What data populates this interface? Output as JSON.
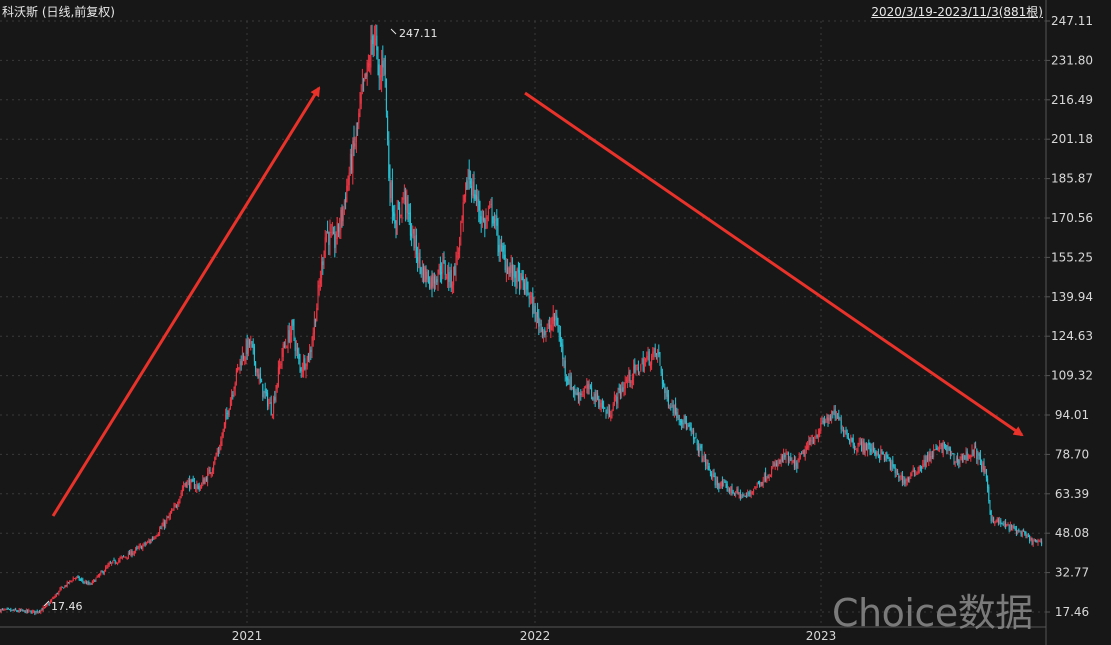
{
  "header": {
    "title": "科沃斯 (日线,前复权)",
    "range": "2020/3/19-2023/11/3(881根)"
  },
  "watermark": "Choice数据",
  "colors": {
    "up": "#f23645",
    "down": "#26c6da",
    "grid": "#3a3a3a",
    "axis": "#555555",
    "arrow": "#e8322a",
    "text": "#d8d8d8",
    "background": "#171717"
  },
  "chart_data": {
    "type": "candlestick",
    "x_range": [
      "2020-03-19",
      "2023-11-03"
    ],
    "bar_count": 881,
    "y_ticks": [
      247.11,
      231.8,
      216.49,
      201.18,
      185.87,
      170.56,
      155.25,
      139.94,
      124.63,
      109.32,
      94.01,
      78.7,
      63.39,
      48.08,
      32.77,
      17.46
    ],
    "y_range": [
      17.46,
      247.11
    ],
    "x_tick_labels": [
      "2021",
      "2022",
      "2023"
    ],
    "annotations": [
      {
        "label": "247.11",
        "type": "max",
        "date": "2021-06"
      },
      {
        "label": "17.46",
        "type": "min",
        "date": "2020-04"
      }
    ],
    "trend_arrows": [
      {
        "direction": "up",
        "from": "2020-05",
        "to": "2021-05"
      },
      {
        "direction": "down",
        "from": "2021-12",
        "to": "2023-10"
      }
    ],
    "price_path": [
      [
        0,
        18.2
      ],
      [
        20,
        17.8
      ],
      [
        35,
        17.46
      ],
      [
        45,
        19
      ],
      [
        60,
        26
      ],
      [
        75,
        31
      ],
      [
        90,
        28
      ],
      [
        110,
        36
      ],
      [
        130,
        40
      ],
      [
        150,
        45
      ],
      [
        165,
        52
      ],
      [
        175,
        58
      ],
      [
        185,
        68
      ],
      [
        200,
        66
      ],
      [
        210,
        72
      ],
      [
        220,
        82
      ],
      [
        230,
        100
      ],
      [
        240,
        115
      ],
      [
        250,
        122
      ],
      [
        262,
        104
      ],
      [
        272,
        96
      ],
      [
        282,
        118
      ],
      [
        292,
        128
      ],
      [
        300,
        112
      ],
      [
        310,
        118
      ],
      [
        318,
        140
      ],
      [
        326,
        166
      ],
      [
        334,
        160
      ],
      [
        342,
        172
      ],
      [
        350,
        190
      ],
      [
        356,
        202
      ],
      [
        362,
        218
      ],
      [
        368,
        228
      ],
      [
        374,
        245
      ],
      [
        379,
        222
      ],
      [
        384,
        236
      ],
      [
        389,
        186
      ],
      [
        396,
        168
      ],
      [
        404,
        180
      ],
      [
        412,
        164
      ],
      [
        422,
        150
      ],
      [
        432,
        146
      ],
      [
        442,
        152
      ],
      [
        452,
        146
      ],
      [
        460,
        162
      ],
      [
        468,
        188
      ],
      [
        476,
        178
      ],
      [
        484,
        168
      ],
      [
        492,
        174
      ],
      [
        500,
        158
      ],
      [
        510,
        150
      ],
      [
        520,
        146
      ],
      [
        528,
        142
      ],
      [
        536,
        132
      ],
      [
        546,
        126
      ],
      [
        556,
        132
      ],
      [
        566,
        110
      ],
      [
        576,
        102
      ],
      [
        588,
        104
      ],
      [
        598,
        100
      ],
      [
        608,
        94
      ],
      [
        618,
        102
      ],
      [
        628,
        108
      ],
      [
        638,
        112
      ],
      [
        648,
        116
      ],
      [
        658,
        118
      ],
      [
        665,
        102
      ],
      [
        675,
        96
      ],
      [
        685,
        91
      ],
      [
        695,
        84
      ],
      [
        705,
        76
      ],
      [
        715,
        68
      ],
      [
        725,
        66
      ],
      [
        735,
        64
      ],
      [
        745,
        62
      ],
      [
        755,
        66
      ],
      [
        765,
        70
      ],
      [
        775,
        74
      ],
      [
        785,
        78
      ],
      [
        795,
        74
      ],
      [
        805,
        80
      ],
      [
        815,
        86
      ],
      [
        825,
        92
      ],
      [
        835,
        94
      ],
      [
        845,
        88
      ],
      [
        855,
        82
      ],
      [
        865,
        82
      ],
      [
        875,
        80
      ],
      [
        885,
        78
      ],
      [
        895,
        72
      ],
      [
        905,
        68
      ],
      [
        915,
        72
      ],
      [
        925,
        76
      ],
      [
        935,
        80
      ],
      [
        945,
        82
      ],
      [
        955,
        76
      ],
      [
        965,
        78
      ],
      [
        975,
        80
      ],
      [
        985,
        72
      ],
      [
        991,
        54
      ],
      [
        1000,
        52
      ],
      [
        1012,
        50
      ],
      [
        1022,
        48
      ],
      [
        1032,
        45
      ],
      [
        1042,
        44
      ]
    ]
  }
}
